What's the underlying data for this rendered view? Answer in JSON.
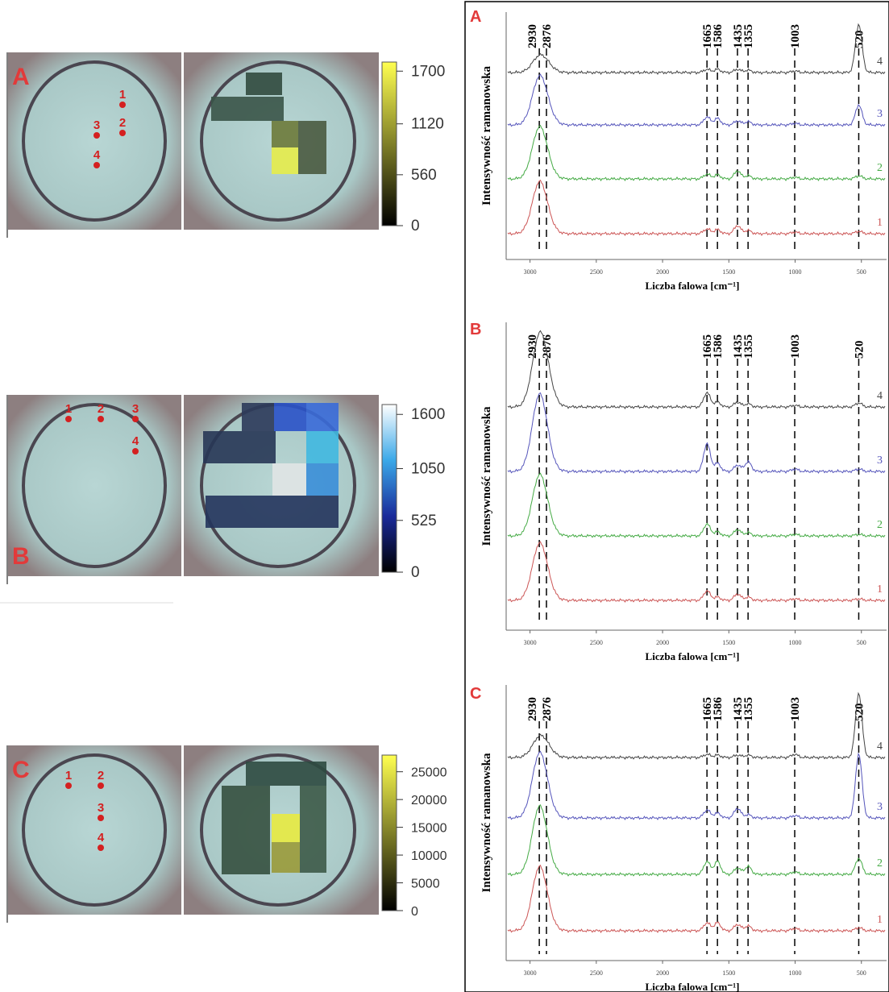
{
  "panels": [
    {
      "label": "A",
      "points": [
        "1",
        "2",
        "3",
        "4"
      ],
      "colorbar": {
        "clim": [
          0,
          1800
        ],
        "ticks": [
          1700,
          1120,
          560,
          0
        ],
        "colors": [
          "#000000",
          "#ffff50"
        ]
      },
      "spectrum": {
        "ylabel": "Intensywność ramanowska",
        "xlabel": "Liczba falowa [cm⁻¹]",
        "xlim": [
          3180,
          310
        ],
        "xticks": [
          3000,
          2500,
          2000,
          1500,
          1000,
          500
        ],
        "peaks": [
          2930,
          2876,
          1665,
          1586,
          1435,
          1355,
          1003,
          520
        ],
        "traces": [
          {
            "name": "4",
            "color": "#444444"
          },
          {
            "name": "3",
            "color": "#5555bb"
          },
          {
            "name": "2",
            "color": "#44aa44"
          },
          {
            "name": "1",
            "color": "#cc5555"
          }
        ]
      }
    },
    {
      "label": "B",
      "points": [
        "1",
        "2",
        "3",
        "4"
      ],
      "colorbar": {
        "clim": [
          0,
          1700
        ],
        "ticks": [
          1600,
          1050,
          525,
          0
        ],
        "colors": [
          "#000000",
          "#1a2a9a",
          "#3aa8e8",
          "#ffffff"
        ]
      },
      "spectrum": {
        "ylabel": "Intensywność ramanowska",
        "xlabel": "Liczba falowa [cm⁻¹]",
        "xlim": [
          3180,
          310
        ],
        "xticks": [
          3000,
          2500,
          2000,
          1500,
          1000,
          500
        ],
        "peaks": [
          2930,
          2876,
          1665,
          1586,
          1435,
          1355,
          1003,
          520
        ],
        "traces": [
          {
            "name": "4",
            "color": "#444444"
          },
          {
            "name": "3",
            "color": "#5555bb"
          },
          {
            "name": "2",
            "color": "#44aa44"
          },
          {
            "name": "1",
            "color": "#cc5555"
          }
        ]
      }
    },
    {
      "label": "C",
      "points": [
        "1",
        "2",
        "3",
        "4"
      ],
      "colorbar": {
        "clim": [
          0,
          28000
        ],
        "ticks": [
          25000,
          20000,
          15000,
          10000,
          5000,
          0
        ],
        "colors": [
          "#000000",
          "#ffff50"
        ]
      },
      "spectrum": {
        "ylabel": "Intensywność ramanowska",
        "xlabel": "Liczba falowa [cm⁻¹]",
        "xlim": [
          3180,
          310
        ],
        "xticks": [
          3000,
          2500,
          2000,
          1500,
          1000,
          500
        ],
        "peaks": [
          2930,
          2876,
          1665,
          1586,
          1435,
          1355,
          1003,
          520
        ],
        "traces": [
          {
            "name": "4",
            "color": "#444444"
          },
          {
            "name": "3",
            "color": "#5555bb"
          },
          {
            "name": "2",
            "color": "#44aa44"
          },
          {
            "name": "1",
            "color": "#cc5555"
          }
        ]
      }
    }
  ]
}
